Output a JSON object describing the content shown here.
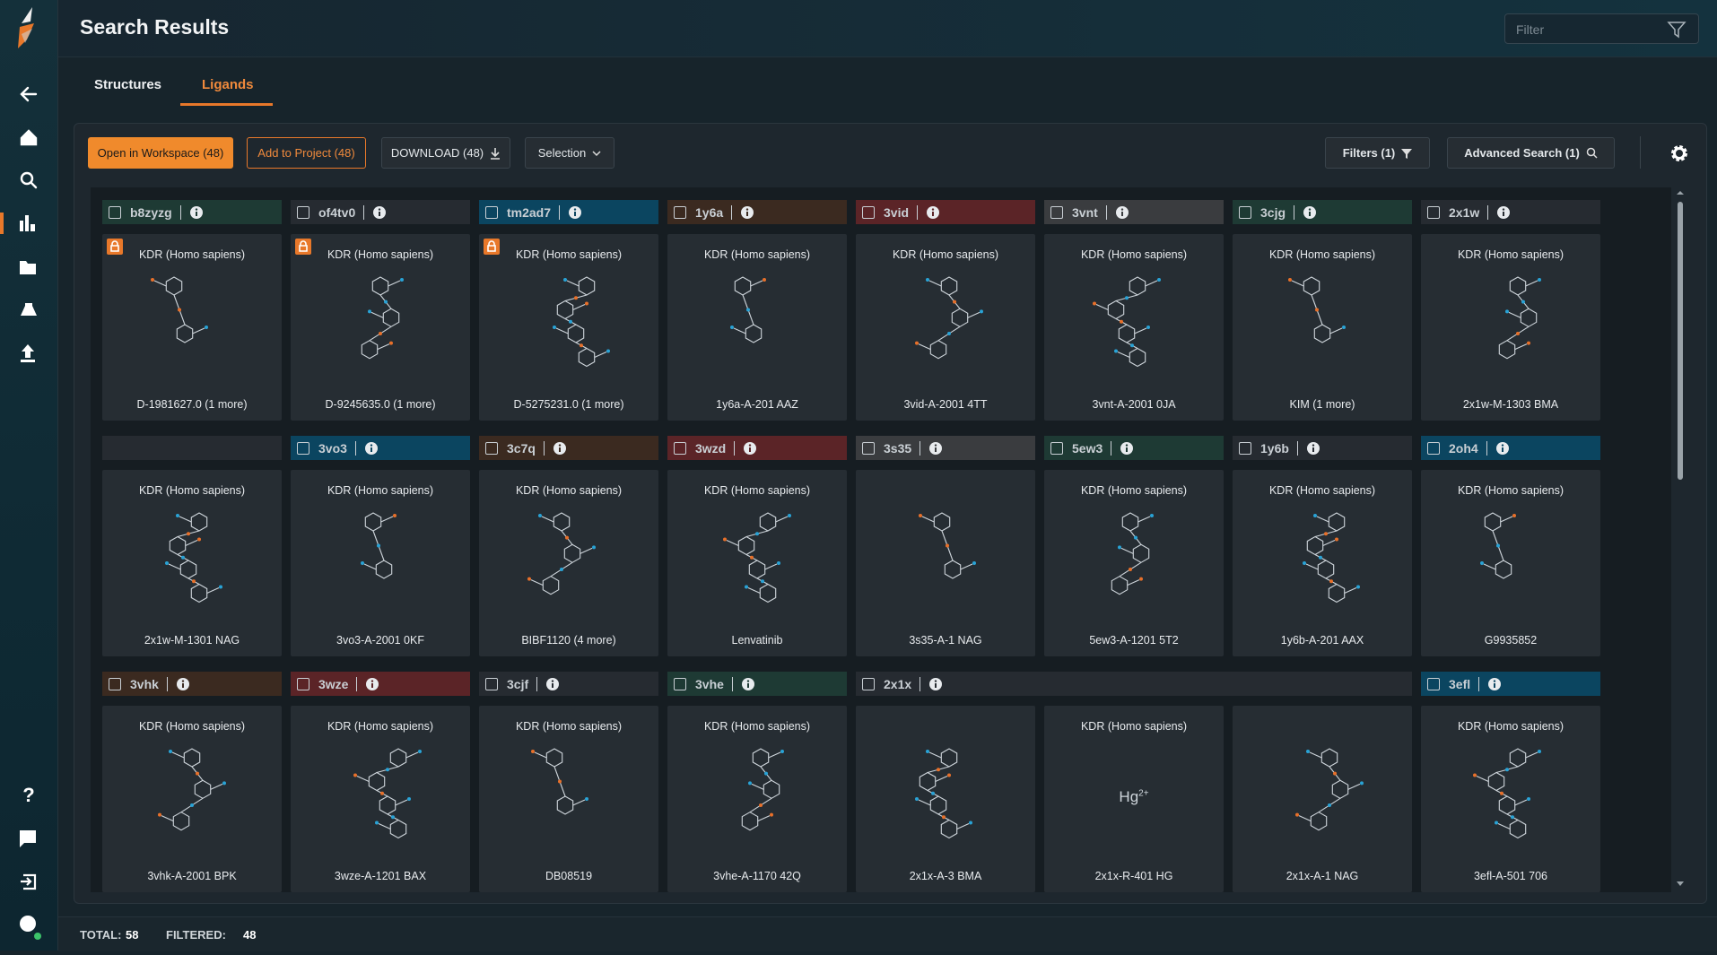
{
  "header": {
    "title": "Search Results",
    "filter_placeholder": "Filter"
  },
  "tabs": [
    "Structures",
    "Ligands"
  ],
  "toolbar": {
    "open_workspace": "Open in Workspace (48)",
    "add_project": "Add to Project (48)",
    "download": "DOWNLOAD (48)",
    "selection": "Selection",
    "filters": "Filters (1)",
    "advanced_search": "Advanced Search (1)"
  },
  "groups": [
    {
      "label": "b8zyzg",
      "color": "#1e3a34",
      "cards": [
        {
          "organism": "KDR (Homo sapiens)",
          "name": "D-1981627.0 (1 more)",
          "locked": true
        }
      ]
    },
    {
      "label": "of4tv0",
      "color": "#262b31",
      "cards": [
        {
          "organism": "KDR (Homo sapiens)",
          "name": "D-9245635.0 (1 more)",
          "locked": true
        }
      ]
    },
    {
      "label": "tm2ad7",
      "color": "#0b4560",
      "cards": [
        {
          "organism": "KDR (Homo sapiens)",
          "name": "D-5275231.0 (1 more)",
          "locked": true
        }
      ]
    },
    {
      "label": "1y6a",
      "color": "#3b2a20",
      "cards": [
        {
          "organism": "KDR (Homo sapiens)",
          "name": "1y6a-A-201 AAZ"
        }
      ]
    },
    {
      "label": "3vid",
      "color": "#5b2427",
      "cards": [
        {
          "organism": "KDR (Homo sapiens)",
          "name": "3vid-A-2001 4TT"
        }
      ]
    },
    {
      "label": "3vnt",
      "color": "#3a3c3f",
      "cards": [
        {
          "organism": "KDR (Homo sapiens)",
          "name": "3vnt-A-2001 0JA"
        }
      ]
    },
    {
      "label": "3cjg",
      "color": "#1e3a34",
      "cards": [
        {
          "organism": "KDR (Homo sapiens)",
          "name": "KIM (1 more)"
        }
      ]
    },
    {
      "label": "2x1w",
      "color": "#262b31",
      "cards": [
        {
          "organism": "KDR (Homo sapiens)",
          "name": "2x1w-M-1303 BMA"
        },
        {
          "organism": "KDR (Homo sapiens)",
          "name": "2x1w-M-1301 NAG"
        }
      ]
    },
    {
      "label": "3vo3",
      "color": "#0b4560",
      "cards": [
        {
          "organism": "KDR (Homo sapiens)",
          "name": "3vo3-A-2001 0KF"
        }
      ]
    },
    {
      "label": "3c7q",
      "color": "#3b2a20",
      "cards": [
        {
          "organism": "KDR (Homo sapiens)",
          "name": "BIBF1120 (4 more)"
        }
      ]
    },
    {
      "label": "3wzd",
      "color": "#5b2427",
      "cards": [
        {
          "organism": "KDR (Homo sapiens)",
          "name": "Lenvatinib"
        }
      ]
    },
    {
      "label": "3s35",
      "color": "#3a3c3f",
      "cards": [
        {
          "name": "3s35-A-1 NAG"
        }
      ]
    },
    {
      "label": "5ew3",
      "color": "#1e3a34",
      "cards": [
        {
          "organism": "KDR (Homo sapiens)",
          "name": "5ew3-A-1201 5T2"
        }
      ]
    },
    {
      "label": "1y6b",
      "color": "#262b31",
      "cards": [
        {
          "organism": "KDR (Homo sapiens)",
          "name": "1y6b-A-201 AAX"
        }
      ]
    },
    {
      "label": "2oh4",
      "color": "#0b4560",
      "cards": [
        {
          "organism": "KDR (Homo sapiens)",
          "name": "G9935852"
        }
      ]
    },
    {
      "label": "3vhk",
      "color": "#3b2a20",
      "cards": [
        {
          "organism": "KDR (Homo sapiens)",
          "name": "3vhk-A-2001 BPK"
        }
      ]
    },
    {
      "label": "3wze",
      "color": "#5b2427",
      "cards": [
        {
          "organism": "KDR (Homo sapiens)",
          "name": "3wze-A-1201 BAX"
        }
      ]
    },
    {
      "label": "3cjf",
      "color": "#262b31",
      "cards": [
        {
          "organism": "KDR (Homo sapiens)",
          "name": "DB08519"
        }
      ]
    },
    {
      "label": "3vhe",
      "color": "#1e3a34",
      "cards": [
        {
          "organism": "KDR (Homo sapiens)",
          "name": "3vhe-A-1170 42Q"
        }
      ]
    },
    {
      "label": "2x1x",
      "color": "#262b31",
      "cards": [
        {
          "name": "2x1x-A-3 BMA"
        },
        {
          "organism": "KDR (Homo sapiens)",
          "name": "2x1x-R-401 HG",
          "ion": {
            "element": "Hg",
            "charge": "2+"
          }
        },
        {
          "name": "2x1x-A-1 NAG"
        }
      ]
    },
    {
      "label": "3efl",
      "color": "#0b4560",
      "cards": [
        {
          "organism": "KDR (Homo sapiens)",
          "name": "3efl-A-501 706"
        }
      ]
    }
  ],
  "footer": {
    "total_label": "TOTAL:",
    "total": "58",
    "filtered_label": "FILTERED:",
    "filtered": "48"
  }
}
